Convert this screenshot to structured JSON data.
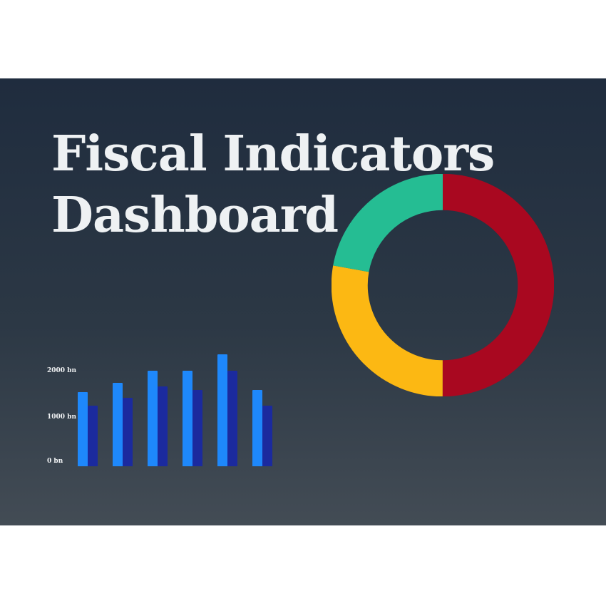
{
  "slide": {
    "title": "Fiscal Indicators Dashboard",
    "background_top": "#1f2c3e",
    "background_bottom": "#434c55",
    "title_color": "#eef1f3"
  },
  "chart_data": [
    {
      "type": "bar",
      "title": "",
      "series": [
        {
          "name": "light-blue-series",
          "color": "#1e88fb",
          "values": [
            1550,
            1750,
            2000,
            2000,
            2350,
            1600
          ]
        },
        {
          "name": "dark-blue-series",
          "color": "#1b2a9e",
          "values": [
            1270,
            1440,
            1670,
            1600,
            2000,
            1270
          ]
        }
      ],
      "y_ticks": [
        "2000 bn",
        "1000 bn",
        "0 bn"
      ],
      "y_unit": "bn",
      "ylim": [
        0,
        2500
      ],
      "grid": false,
      "legend_position": "none"
    },
    {
      "type": "donut",
      "start_at": "top",
      "direction": "clockwise",
      "segments": [
        {
          "name": "red-segment",
          "color": "#a90820",
          "percent": 50.0
        },
        {
          "name": "yellow-segment",
          "color": "#fcb813",
          "percent": 27.8
        },
        {
          "name": "green-segment",
          "color": "#25bd93",
          "percent": 22.2
        }
      ],
      "legend_position": "none"
    }
  ]
}
